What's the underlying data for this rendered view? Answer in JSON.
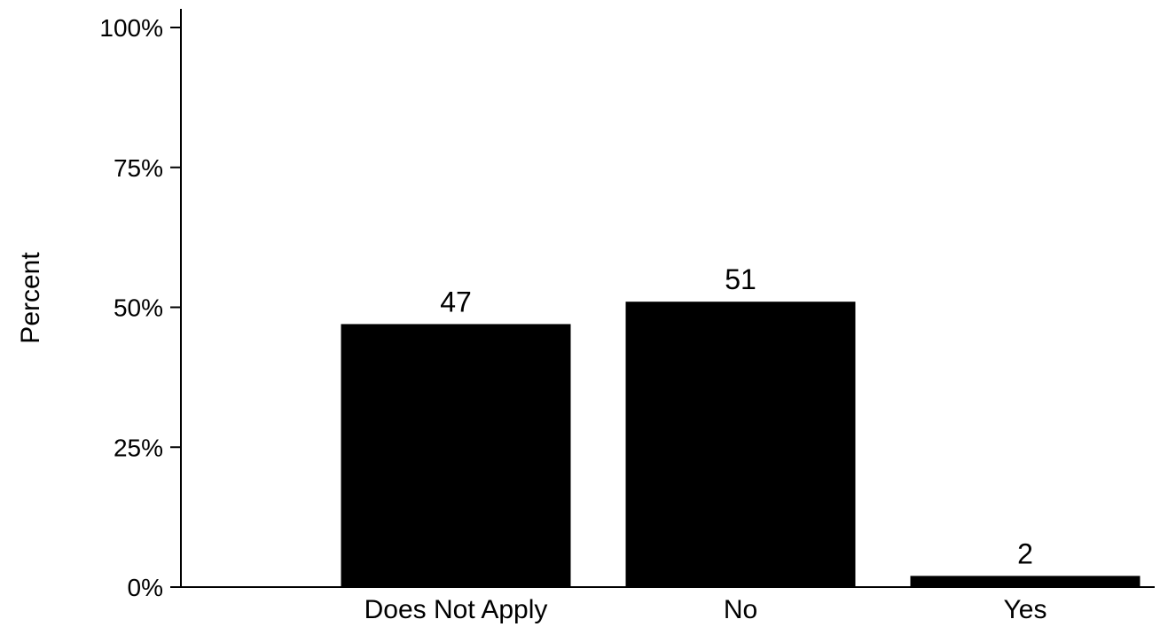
{
  "chart_data": {
    "type": "bar",
    "categories": [
      "Does Not Apply",
      "No",
      "Yes"
    ],
    "values": [
      47,
      51,
      2
    ],
    "data_labels": [
      "47",
      "51",
      "2"
    ],
    "ylabel": "Percent",
    "xlabel": "",
    "ylim": [
      0,
      100
    ],
    "yticks": [
      0,
      25,
      50,
      75,
      100
    ],
    "ytick_labels": [
      "0%",
      "25%",
      "50%",
      "75%",
      "100%"
    ],
    "grid": false,
    "legend": "none",
    "bar_color": "#000000"
  }
}
